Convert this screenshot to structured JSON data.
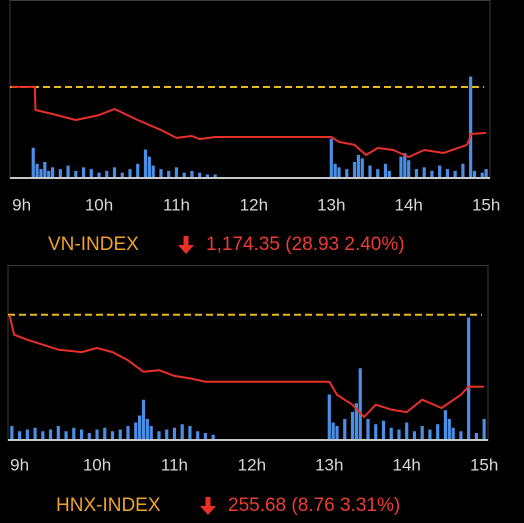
{
  "chart_data": [
    {
      "type": "line",
      "title": "VN-INDEX",
      "subtitle": "1,174.35 (28.93 2.40%)",
      "x": [
        8.87,
        9.17,
        9.18,
        9.4,
        9.7,
        10.0,
        10.2,
        10.5,
        10.8,
        11.0,
        11.2,
        11.3,
        11.5,
        13.0,
        13.1,
        13.3,
        13.45,
        13.6,
        13.8,
        14.0,
        14.2,
        14.45,
        14.75,
        14.78,
        14.8,
        15.0
      ],
      "values": [
        1203.3,
        1203.3,
        1188.8,
        1186.3,
        1182.5,
        1185.6,
        1189.4,
        1182.5,
        1176.2,
        1171.2,
        1172.4,
        1170.5,
        1171.8,
        1171.8,
        1168.7,
        1166.8,
        1160.5,
        1164.9,
        1163.6,
        1159.2,
        1163.6,
        1161.7,
        1166.8,
        1169.9,
        1173.7,
        1174.35
      ],
      "color": "#e8302a",
      "reference": 1203.28,
      "reference_color": "#e8b820",
      "volume": {
        "color": "#4a8ee6",
        "ylim": [
          0,
          100
        ],
        "x": [
          9.15,
          9.2,
          9.25,
          9.3,
          9.35,
          9.4,
          9.5,
          9.6,
          9.7,
          9.8,
          9.9,
          10.0,
          10.1,
          10.2,
          10.3,
          10.4,
          10.5,
          10.6,
          10.65,
          10.7,
          10.8,
          10.9,
          11.0,
          11.1,
          11.2,
          11.3,
          11.4,
          11.5,
          13.0,
          13.05,
          13.1,
          13.2,
          13.3,
          13.35,
          13.4,
          13.5,
          13.6,
          13.7,
          13.75,
          13.9,
          13.95,
          14.0,
          14.1,
          14.2,
          14.3,
          14.4,
          14.5,
          14.6,
          14.7,
          14.8,
          14.85,
          14.95,
          15.0
        ],
        "values": [
          17,
          8,
          5,
          9,
          4,
          6,
          5,
          7,
          4,
          6,
          5,
          3,
          4,
          6,
          3,
          5,
          8,
          16,
          12,
          7,
          5,
          4,
          6,
          3,
          4,
          3,
          2,
          2,
          22,
          8,
          6,
          5,
          9,
          13,
          11,
          7,
          5,
          8,
          4,
          12,
          14,
          10,
          5,
          6,
          4,
          7,
          5,
          4,
          8,
          57,
          4,
          3,
          5
        ]
      },
      "xlim": [
        8.85,
        15.05
      ],
      "ylim": [
        1146,
        1258
      ],
      "xticks": [
        {
          "value": 9,
          "label": "9h"
        },
        {
          "value": 10,
          "label": "10h"
        },
        {
          "value": 11,
          "label": "11h"
        },
        {
          "value": 12,
          "label": "12h"
        },
        {
          "value": 13,
          "label": "13h"
        },
        {
          "value": 14,
          "label": "14h"
        },
        {
          "value": 15,
          "label": "15h"
        }
      ]
    },
    {
      "type": "line",
      "title": "HNX-INDEX",
      "subtitle": "255.68 (8.76 3.31%)",
      "x": [
        8.87,
        8.93,
        9.1,
        9.3,
        9.5,
        9.8,
        10.0,
        10.2,
        10.4,
        10.6,
        10.8,
        11.0,
        11.2,
        11.4,
        13.0,
        13.1,
        13.3,
        13.45,
        13.6,
        13.8,
        14.0,
        14.2,
        14.45,
        14.7,
        14.8,
        15.0
      ],
      "values": [
        264.4,
        262.0,
        261.4,
        260.8,
        260.2,
        259.9,
        260.4,
        259.9,
        258.9,
        257.5,
        257.7,
        257.0,
        256.7,
        256.3,
        256.3,
        254.7,
        253.5,
        252.0,
        253.5,
        252.9,
        252.6,
        254.1,
        253.1,
        254.7,
        255.7,
        255.68
      ],
      "color": "#e8302a",
      "reference": 264.44,
      "reference_color": "#e8b820",
      "volume": {
        "color": "#4a8ee6",
        "ylim": [
          0,
          100
        ],
        "x": [
          8.9,
          9.0,
          9.1,
          9.2,
          9.3,
          9.4,
          9.5,
          9.6,
          9.7,
          9.8,
          9.9,
          10.0,
          10.1,
          10.2,
          10.3,
          10.4,
          10.5,
          10.55,
          10.6,
          10.65,
          10.7,
          10.8,
          10.9,
          11.0,
          11.1,
          11.2,
          11.3,
          11.4,
          11.5,
          13.0,
          13.05,
          13.1,
          13.2,
          13.3,
          13.35,
          13.4,
          13.5,
          13.6,
          13.7,
          13.8,
          13.9,
          14.0,
          14.1,
          14.2,
          14.3,
          14.4,
          14.5,
          14.55,
          14.6,
          14.7,
          14.8,
          14.9,
          15.0
        ],
        "values": [
          8,
          5,
          6,
          7,
          5,
          6,
          8,
          5,
          7,
          6,
          4,
          6,
          7,
          5,
          6,
          8,
          10,
          14,
          23,
          12,
          8,
          5,
          6,
          7,
          9,
          8,
          5,
          4,
          3,
          26,
          10,
          8,
          12,
          16,
          21,
          41,
          12,
          9,
          11,
          7,
          6,
          10,
          5,
          8,
          6,
          9,
          17,
          12,
          7,
          5,
          70,
          4,
          12
        ]
      },
      "xlim": [
        8.85,
        15.05
      ],
      "ylim": [
        249.2,
        270.5
      ],
      "xticks": [
        {
          "value": 9,
          "label": "9h"
        },
        {
          "value": 10,
          "label": "10h"
        },
        {
          "value": 11,
          "label": "11h"
        },
        {
          "value": 12,
          "label": "12h"
        },
        {
          "value": 13,
          "label": "13h"
        },
        {
          "value": 14,
          "label": "14h"
        },
        {
          "value": 15,
          "label": "15h"
        }
      ]
    }
  ]
}
